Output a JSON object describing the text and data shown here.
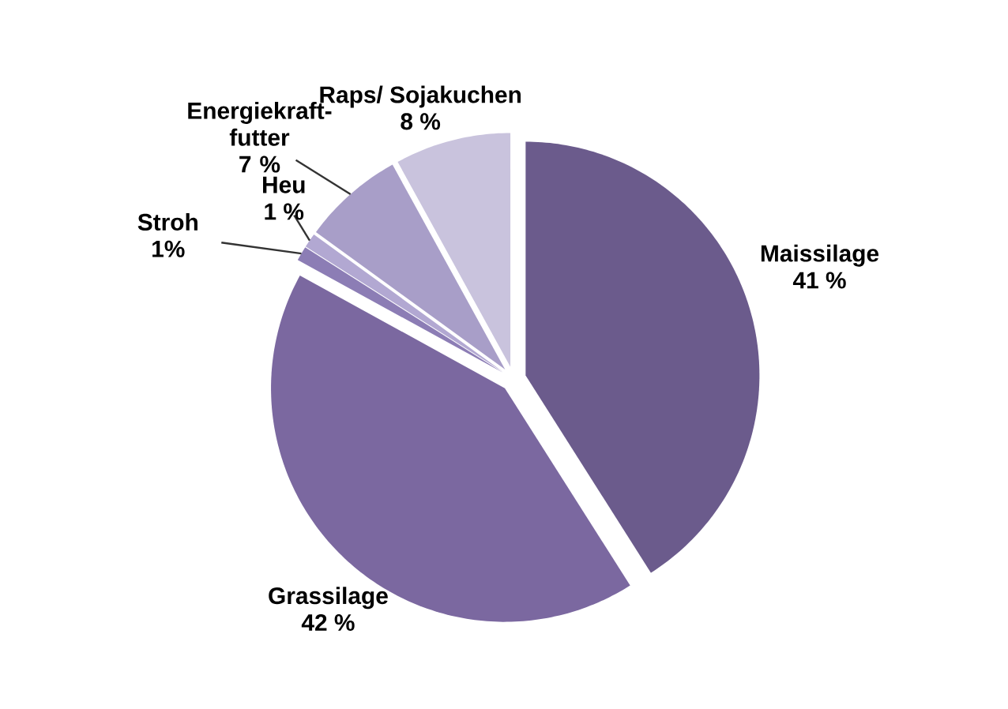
{
  "chart_data": {
    "type": "pie",
    "categories": [
      "Maissilage",
      "Grassilage",
      "Stroh",
      "Heu",
      "Energiekraft-futter",
      "Raps/ Sojakuchen"
    ],
    "values": [
      41,
      42,
      1,
      1,
      7,
      8
    ],
    "value_labels": [
      "41 %",
      "42 %",
      "1%",
      "1 %",
      "7 %",
      "8 %"
    ],
    "colors": [
      "#6b5b8c",
      "#7b68a0",
      "#8c7db5",
      "#b2a8d2",
      "#a89ec8",
      "#c9c3dd"
    ]
  }
}
